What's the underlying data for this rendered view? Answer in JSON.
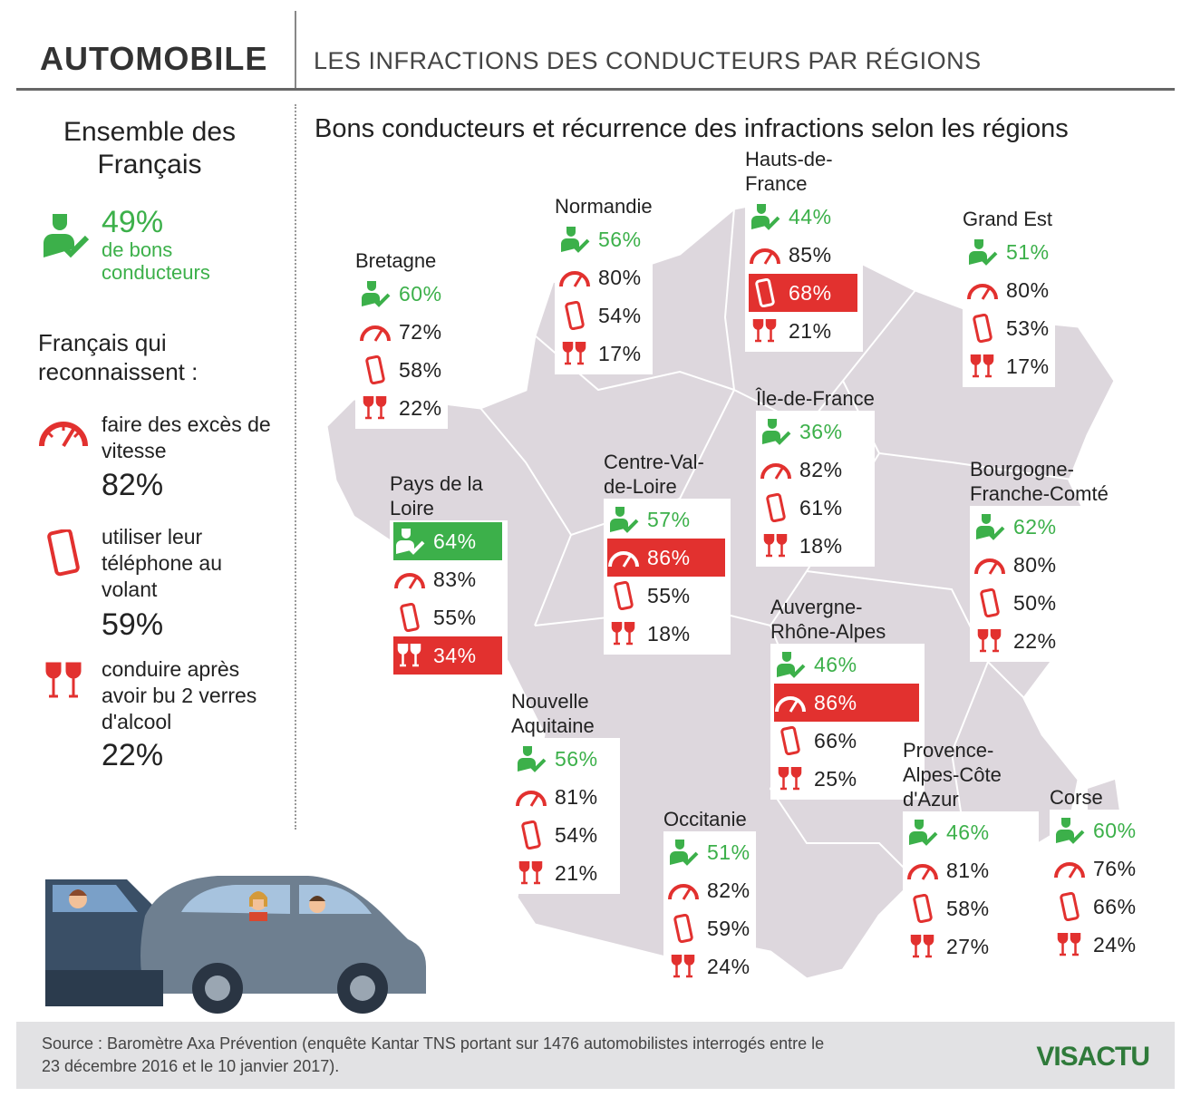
{
  "header": {
    "title": "AUTOMOBILE",
    "subtitle": "LES INFRACTIONS DES CONDUCTEURS PAR RÉGIONS"
  },
  "left_panel": {
    "heading": "Ensemble des Français",
    "good_pct": "49%",
    "good_label": "de bons conducteurs",
    "admit_heading": "Français qui reconnaissent :",
    "items": [
      {
        "icon": "speedometer-icon",
        "label": "faire des excès de vitesse",
        "pct": "82%"
      },
      {
        "icon": "phone-icon",
        "label": "utiliser leur téléphone au volant",
        "pct": "59%"
      },
      {
        "icon": "wine-glasses-icon",
        "label": "conduire après avoir bu 2 verres d'alcool",
        "pct": "22%"
      }
    ]
  },
  "map_title": "Bons conducteurs et récurrence des infractions selon les régions",
  "regions": [
    {
      "name": "Bretagne",
      "good": "60%",
      "speed": "72%",
      "phone": "58%",
      "alcohol": "22%"
    },
    {
      "name": "Normandie",
      "good": "56%",
      "speed": "80%",
      "phone": "54%",
      "alcohol": "17%"
    },
    {
      "name": "Hauts-de-France",
      "good": "44%",
      "speed": "85%",
      "phone": "68%",
      "alcohol": "21%"
    },
    {
      "name": "Grand Est",
      "good": "51%",
      "speed": "80%",
      "phone": "53%",
      "alcohol": "17%"
    },
    {
      "name": "Île-de-France",
      "good": "36%",
      "speed": "82%",
      "phone": "61%",
      "alcohol": "18%"
    },
    {
      "name": "Pays de la Loire",
      "good": "64%",
      "speed": "83%",
      "phone": "55%",
      "alcohol": "34%"
    },
    {
      "name": "Centre-Val-de-Loire",
      "good": "57%",
      "speed": "86%",
      "phone": "55%",
      "alcohol": "18%"
    },
    {
      "name": "Bourgogne-Franche-Comté",
      "good": "62%",
      "speed": "80%",
      "phone": "50%",
      "alcohol": "22%"
    },
    {
      "name": "Auvergne-Rhône-Alpes",
      "good": "46%",
      "speed": "86%",
      "phone": "66%",
      "alcohol": "25%"
    },
    {
      "name": "Nouvelle Aquitaine",
      "good": "56%",
      "speed": "81%",
      "phone": "54%",
      "alcohol": "21%"
    },
    {
      "name": "Occitanie",
      "good": "51%",
      "speed": "82%",
      "phone": "59%",
      "alcohol": "24%"
    },
    {
      "name": "Provence-Alpes-Côte d'Azur",
      "good": "46%",
      "speed": "81%",
      "phone": "58%",
      "alcohol": "27%"
    },
    {
      "name": "Corse",
      "good": "60%",
      "speed": "76%",
      "phone": "66%",
      "alcohol": "24%"
    }
  ],
  "footer": {
    "source": "Source : Baromètre Axa Prévention (enquête Kantar TNS portant sur 1476 automobilistes interrogés entre le 23 décembre 2016 et le 10 janvier 2017).",
    "logo": "VISACTU"
  },
  "colors": {
    "green": "#3cb04a",
    "red": "#e2312f",
    "map": "#ddd7dd"
  }
}
